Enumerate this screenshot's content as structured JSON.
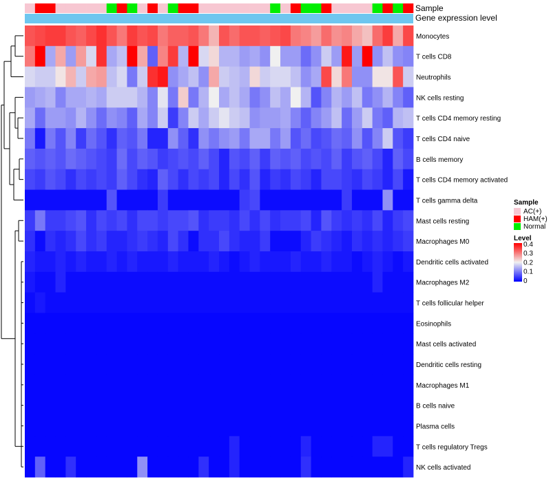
{
  "chart_data": {
    "type": "heatmap",
    "title": "",
    "annotation_labels": {
      "sample": "Sample",
      "gene": "Gene expression level"
    },
    "sample_legend": {
      "title": "Sample",
      "entries": [
        {
          "label": "AC(+)",
          "color": "#f7c7d2"
        },
        {
          "label": "HAM(+)",
          "color": "#ff0000"
        },
        {
          "label": "Normal",
          "color": "#00ee00"
        }
      ]
    },
    "color_scale": {
      "title": "Level",
      "min": 0,
      "max": 0.4,
      "low": "#0000ff",
      "mid": "#f0f0f0",
      "high": "#ff0000",
      "ticks": [
        "0.4",
        "0.3",
        "0.2",
        "0.1",
        "0"
      ]
    },
    "gene_bar_color": "#6ec6ef",
    "samples": [
      "AC(+)",
      "HAM(+)",
      "HAM(+)",
      "AC(+)",
      "AC(+)",
      "AC(+)",
      "AC(+)",
      "AC(+)",
      "Normal",
      "HAM(+)",
      "Normal",
      "AC(+)",
      "HAM(+)",
      "AC(+)",
      "Normal",
      "HAM(+)",
      "HAM(+)",
      "AC(+)",
      "AC(+)",
      "AC(+)",
      "AC(+)",
      "AC(+)",
      "AC(+)",
      "AC(+)",
      "Normal",
      "AC(+)",
      "HAM(+)",
      "Normal",
      "Normal",
      "HAM(+)",
      "AC(+)",
      "AC(+)",
      "AC(+)",
      "AC(+)",
      "Normal",
      "HAM(+)",
      "Normal",
      "HAM(+)"
    ],
    "rows": [
      "Monocytes",
      "T cells CD8",
      "Neutrophils",
      "NK cells resting",
      "T cells CD4 memory resting",
      "T cells CD4 naive",
      "B cells memory",
      "T cells CD4 memory activated",
      "T cells gamma delta",
      "Mast cells resting",
      "Macrophages M0",
      "Dendritic cells activated",
      "Macrophages M2",
      "T cells follicular helper",
      "Eosinophils",
      "Mast cells activated",
      "Dendritic cells resting",
      "Macrophages M1",
      "B cells naive",
      "Plasma cells",
      "T cells regulatory  Tregs",
      "NK cells activated"
    ],
    "values": [
      [
        0.33,
        0.34,
        0.35,
        0.35,
        0.33,
        0.32,
        0.34,
        0.36,
        0.33,
        0.3,
        0.35,
        0.33,
        0.34,
        0.3,
        0.32,
        0.32,
        0.33,
        0.3,
        0.25,
        0.33,
        0.31,
        0.33,
        0.33,
        0.32,
        0.33,
        0.34,
        0.3,
        0.29,
        0.27,
        0.31,
        0.28,
        0.29,
        0.26,
        0.24,
        0.31,
        0.35,
        0.26,
        0.34
      ],
      [
        0.3,
        0.4,
        0.14,
        0.26,
        0.13,
        0.27,
        0.18,
        0.36,
        0.14,
        0.16,
        0.4,
        0.26,
        0.08,
        0.29,
        0.35,
        0.15,
        0.4,
        0.18,
        0.22,
        0.15,
        0.15,
        0.13,
        0.14,
        0.12,
        0.2,
        0.13,
        0.13,
        0.09,
        0.12,
        0.17,
        0.13,
        0.38,
        0.13,
        0.4,
        0.12,
        0.16,
        0.12,
        0.11
      ],
      [
        0.18,
        0.17,
        0.17,
        0.21,
        0.25,
        0.17,
        0.26,
        0.27,
        0.16,
        0.18,
        0.1,
        0.17,
        0.36,
        0.38,
        0.12,
        0.14,
        0.16,
        0.12,
        0.26,
        0.17,
        0.16,
        0.15,
        0.22,
        0.17,
        0.18,
        0.18,
        0.16,
        0.12,
        0.14,
        0.34,
        0.22,
        0.3,
        0.12,
        0.12,
        0.21,
        0.21,
        0.33,
        0.17
      ],
      [
        0.13,
        0.14,
        0.15,
        0.11,
        0.14,
        0.14,
        0.15,
        0.14,
        0.17,
        0.17,
        0.17,
        0.15,
        0.11,
        0.19,
        0.1,
        0.23,
        0.1,
        0.15,
        0.2,
        0.14,
        0.16,
        0.14,
        0.1,
        0.12,
        0.16,
        0.14,
        0.2,
        0.15,
        0.07,
        0.11,
        0.15,
        0.13,
        0.16,
        0.1,
        0.12,
        0.15,
        0.11,
        0.08
      ],
      [
        0.14,
        0.09,
        0.13,
        0.13,
        0.12,
        0.15,
        0.12,
        0.09,
        0.12,
        0.11,
        0.08,
        0.14,
        0.11,
        0.17,
        0.05,
        0.11,
        0.17,
        0.14,
        0.17,
        0.19,
        0.17,
        0.16,
        0.12,
        0.13,
        0.13,
        0.14,
        0.11,
        0.08,
        0.11,
        0.13,
        0.16,
        0.09,
        0.13,
        0.17,
        0.1,
        0.08,
        0.15,
        0.16
      ],
      [
        0.1,
        0.02,
        0.1,
        0.07,
        0.11,
        0.05,
        0.09,
        0.07,
        0.04,
        0.08,
        0.07,
        0.1,
        0.03,
        0.03,
        0.12,
        0.08,
        0.04,
        0.12,
        0.1,
        0.12,
        0.13,
        0.1,
        0.14,
        0.14,
        0.1,
        0.13,
        0.07,
        0.09,
        0.06,
        0.07,
        0.09,
        0.08,
        0.12,
        0.07,
        0.11,
        0.17,
        0.07,
        0.05
      ],
      [
        0.08,
        0.07,
        0.08,
        0.07,
        0.09,
        0.08,
        0.07,
        0.06,
        0.05,
        0.09,
        0.06,
        0.08,
        0.07,
        0.05,
        0.06,
        0.07,
        0.06,
        0.08,
        0.06,
        0.03,
        0.07,
        0.06,
        0.08,
        0.05,
        0.08,
        0.07,
        0.08,
        0.06,
        0.07,
        0.06,
        0.08,
        0.05,
        0.07,
        0.08,
        0.06,
        0.03,
        0.08,
        0.06
      ],
      [
        0.06,
        0.05,
        0.07,
        0.06,
        0.04,
        0.06,
        0.05,
        0.06,
        0.05,
        0.08,
        0.06,
        0.04,
        0.03,
        0.08,
        0.06,
        0.04,
        0.06,
        0.05,
        0.06,
        0.03,
        0.06,
        0.04,
        0.07,
        0.03,
        0.05,
        0.04,
        0.06,
        0.05,
        0.03,
        0.06,
        0.06,
        0.05,
        0.04,
        0.06,
        0.05,
        0.03,
        0.06,
        0.02
      ],
      [
        0.01,
        0.01,
        0.01,
        0.01,
        0.01,
        0.01,
        0.01,
        0.01,
        0.07,
        0.01,
        0.01,
        0.01,
        0.01,
        0.05,
        0.01,
        0.01,
        0.01,
        0.01,
        0.01,
        0.01,
        0.01,
        0.05,
        0.06,
        0.01,
        0.01,
        0.01,
        0.01,
        0.01,
        0.01,
        0.01,
        0.01,
        0.05,
        0.01,
        0.01,
        0.01,
        0.12,
        0.01,
        0.01
      ],
      [
        0.05,
        0.1,
        0.05,
        0.05,
        0.06,
        0.07,
        0.04,
        0.06,
        0.05,
        0.06,
        0.04,
        0.06,
        0.06,
        0.05,
        0.06,
        0.06,
        0.07,
        0.04,
        0.05,
        0.05,
        0.04,
        0.06,
        0.04,
        0.06,
        0.04,
        0.05,
        0.05,
        0.06,
        0.03,
        0.07,
        0.05,
        0.04,
        0.05,
        0.04,
        0.06,
        0.03,
        0.05,
        0.06
      ],
      [
        0.04,
        0.01,
        0.04,
        0.03,
        0.04,
        0.06,
        0.04,
        0.05,
        0.03,
        0.03,
        0.04,
        0.05,
        0.04,
        0.03,
        0.06,
        0.04,
        0.01,
        0.04,
        0.04,
        0.06,
        0.04,
        0.03,
        0.03,
        0.05,
        0.01,
        0.01,
        0.01,
        0.03,
        0.05,
        0.04,
        0.03,
        0.02,
        0.04,
        0.03,
        0.04,
        0.03,
        0.04,
        0.05
      ],
      [
        0.03,
        0.02,
        0.02,
        0.03,
        0.02,
        0.03,
        0.02,
        0.02,
        0.03,
        0.02,
        0.03,
        0.02,
        0.02,
        0.02,
        0.03,
        0.02,
        0.02,
        0.02,
        0.03,
        0.02,
        0.01,
        0.02,
        0.03,
        0.02,
        0.02,
        0.02,
        0.03,
        0.02,
        0.02,
        0.03,
        0.02,
        0.02,
        0.01,
        0.02,
        0.03,
        0.02,
        0.01,
        0.02
      ],
      [
        0.02,
        0.01,
        0.01,
        0.03,
        0.01,
        0.01,
        0.01,
        0.01,
        0.01,
        0.01,
        0.01,
        0.01,
        0.01,
        0.01,
        0.01,
        0.01,
        0.01,
        0.01,
        0.01,
        0.01,
        0.01,
        0.01,
        0.01,
        0.01,
        0.01,
        0.01,
        0.01,
        0.01,
        0.01,
        0.01,
        0.01,
        0.01,
        0.01,
        0.01,
        0.03,
        0.01,
        0.01,
        0.01
      ],
      [
        0.01,
        0.02,
        0.01,
        0.01,
        0.01,
        0.01,
        0.01,
        0.01,
        0.01,
        0.01,
        0.01,
        0.01,
        0.01,
        0.01,
        0.01,
        0.01,
        0.01,
        0.01,
        0.01,
        0.01,
        0.01,
        0.01,
        0.01,
        0.01,
        0.01,
        0.01,
        0.01,
        0.01,
        0.01,
        0.01,
        0.01,
        0.01,
        0.01,
        0.01,
        0.01,
        0.01,
        0.01,
        0.01
      ],
      [
        0.005,
        0.005,
        0.005,
        0.005,
        0.005,
        0.005,
        0.005,
        0.005,
        0.005,
        0.005,
        0.005,
        0.005,
        0.005,
        0.005,
        0.005,
        0.005,
        0.005,
        0.005,
        0.005,
        0.005,
        0.005,
        0.005,
        0.005,
        0.005,
        0.005,
        0.005,
        0.005,
        0.005,
        0.005,
        0.005,
        0.005,
        0.005,
        0.005,
        0.005,
        0.005,
        0.005,
        0.005,
        0.005
      ],
      [
        0.005,
        0.005,
        0.005,
        0.005,
        0.005,
        0.005,
        0.005,
        0.005,
        0.005,
        0.005,
        0.005,
        0.005,
        0.005,
        0.005,
        0.005,
        0.005,
        0.005,
        0.005,
        0.005,
        0.005,
        0.005,
        0.005,
        0.005,
        0.005,
        0.005,
        0.005,
        0.005,
        0.005,
        0.005,
        0.005,
        0.005,
        0.005,
        0.005,
        0.005,
        0.005,
        0.005,
        0.005,
        0.005
      ],
      [
        0.005,
        0.005,
        0.005,
        0.005,
        0.005,
        0.005,
        0.005,
        0.005,
        0.005,
        0.005,
        0.005,
        0.005,
        0.005,
        0.005,
        0.005,
        0.005,
        0.005,
        0.005,
        0.005,
        0.005,
        0.005,
        0.005,
        0.005,
        0.005,
        0.005,
        0.005,
        0.005,
        0.005,
        0.005,
        0.005,
        0.005,
        0.005,
        0.005,
        0.005,
        0.005,
        0.005,
        0.005,
        0.005
      ],
      [
        0.005,
        0.005,
        0.005,
        0.005,
        0.005,
        0.005,
        0.005,
        0.005,
        0.005,
        0.005,
        0.005,
        0.005,
        0.005,
        0.005,
        0.005,
        0.005,
        0.005,
        0.005,
        0.005,
        0.005,
        0.005,
        0.005,
        0.005,
        0.005,
        0.005,
        0.005,
        0.005,
        0.005,
        0.005,
        0.005,
        0.005,
        0.005,
        0.005,
        0.005,
        0.005,
        0.005,
        0.005,
        0.005
      ],
      [
        0.005,
        0.005,
        0.005,
        0.005,
        0.005,
        0.005,
        0.005,
        0.005,
        0.005,
        0.005,
        0.005,
        0.005,
        0.005,
        0.005,
        0.005,
        0.005,
        0.005,
        0.005,
        0.005,
        0.005,
        0.005,
        0.005,
        0.005,
        0.005,
        0.005,
        0.005,
        0.005,
        0.005,
        0.005,
        0.005,
        0.005,
        0.005,
        0.005,
        0.005,
        0.005,
        0.005,
        0.005,
        0.005
      ],
      [
        0.005,
        0.005,
        0.005,
        0.005,
        0.005,
        0.005,
        0.005,
        0.005,
        0.005,
        0.005,
        0.005,
        0.005,
        0.005,
        0.005,
        0.005,
        0.005,
        0.005,
        0.005,
        0.005,
        0.005,
        0.005,
        0.005,
        0.005,
        0.005,
        0.005,
        0.005,
        0.005,
        0.005,
        0.005,
        0.005,
        0.005,
        0.005,
        0.005,
        0.005,
        0.005,
        0.005,
        0.005,
        0.005
      ],
      [
        0.005,
        0.005,
        0.005,
        0.005,
        0.005,
        0.005,
        0.005,
        0.005,
        0.005,
        0.005,
        0.005,
        0.005,
        0.005,
        0.005,
        0.005,
        0.005,
        0.005,
        0.005,
        0.005,
        0.005,
        0.03,
        0.005,
        0.005,
        0.005,
        0.005,
        0.005,
        0.005,
        0.03,
        0.005,
        0.005,
        0.005,
        0.005,
        0.005,
        0.005,
        0.03,
        0.03,
        0.005,
        0.005
      ],
      [
        0.005,
        0.08,
        0.005,
        0.005,
        0.04,
        0.005,
        0.005,
        0.005,
        0.005,
        0.005,
        0.005,
        0.12,
        0.005,
        0.005,
        0.005,
        0.005,
        0.005,
        0.04,
        0.005,
        0.005,
        0.03,
        0.005,
        0.005,
        0.005,
        0.005,
        0.005,
        0.005,
        0.04,
        0.005,
        0.005,
        0.005,
        0.005,
        0.005,
        0.005,
        0.005,
        0.005,
        0.005,
        0.03
      ]
    ]
  }
}
